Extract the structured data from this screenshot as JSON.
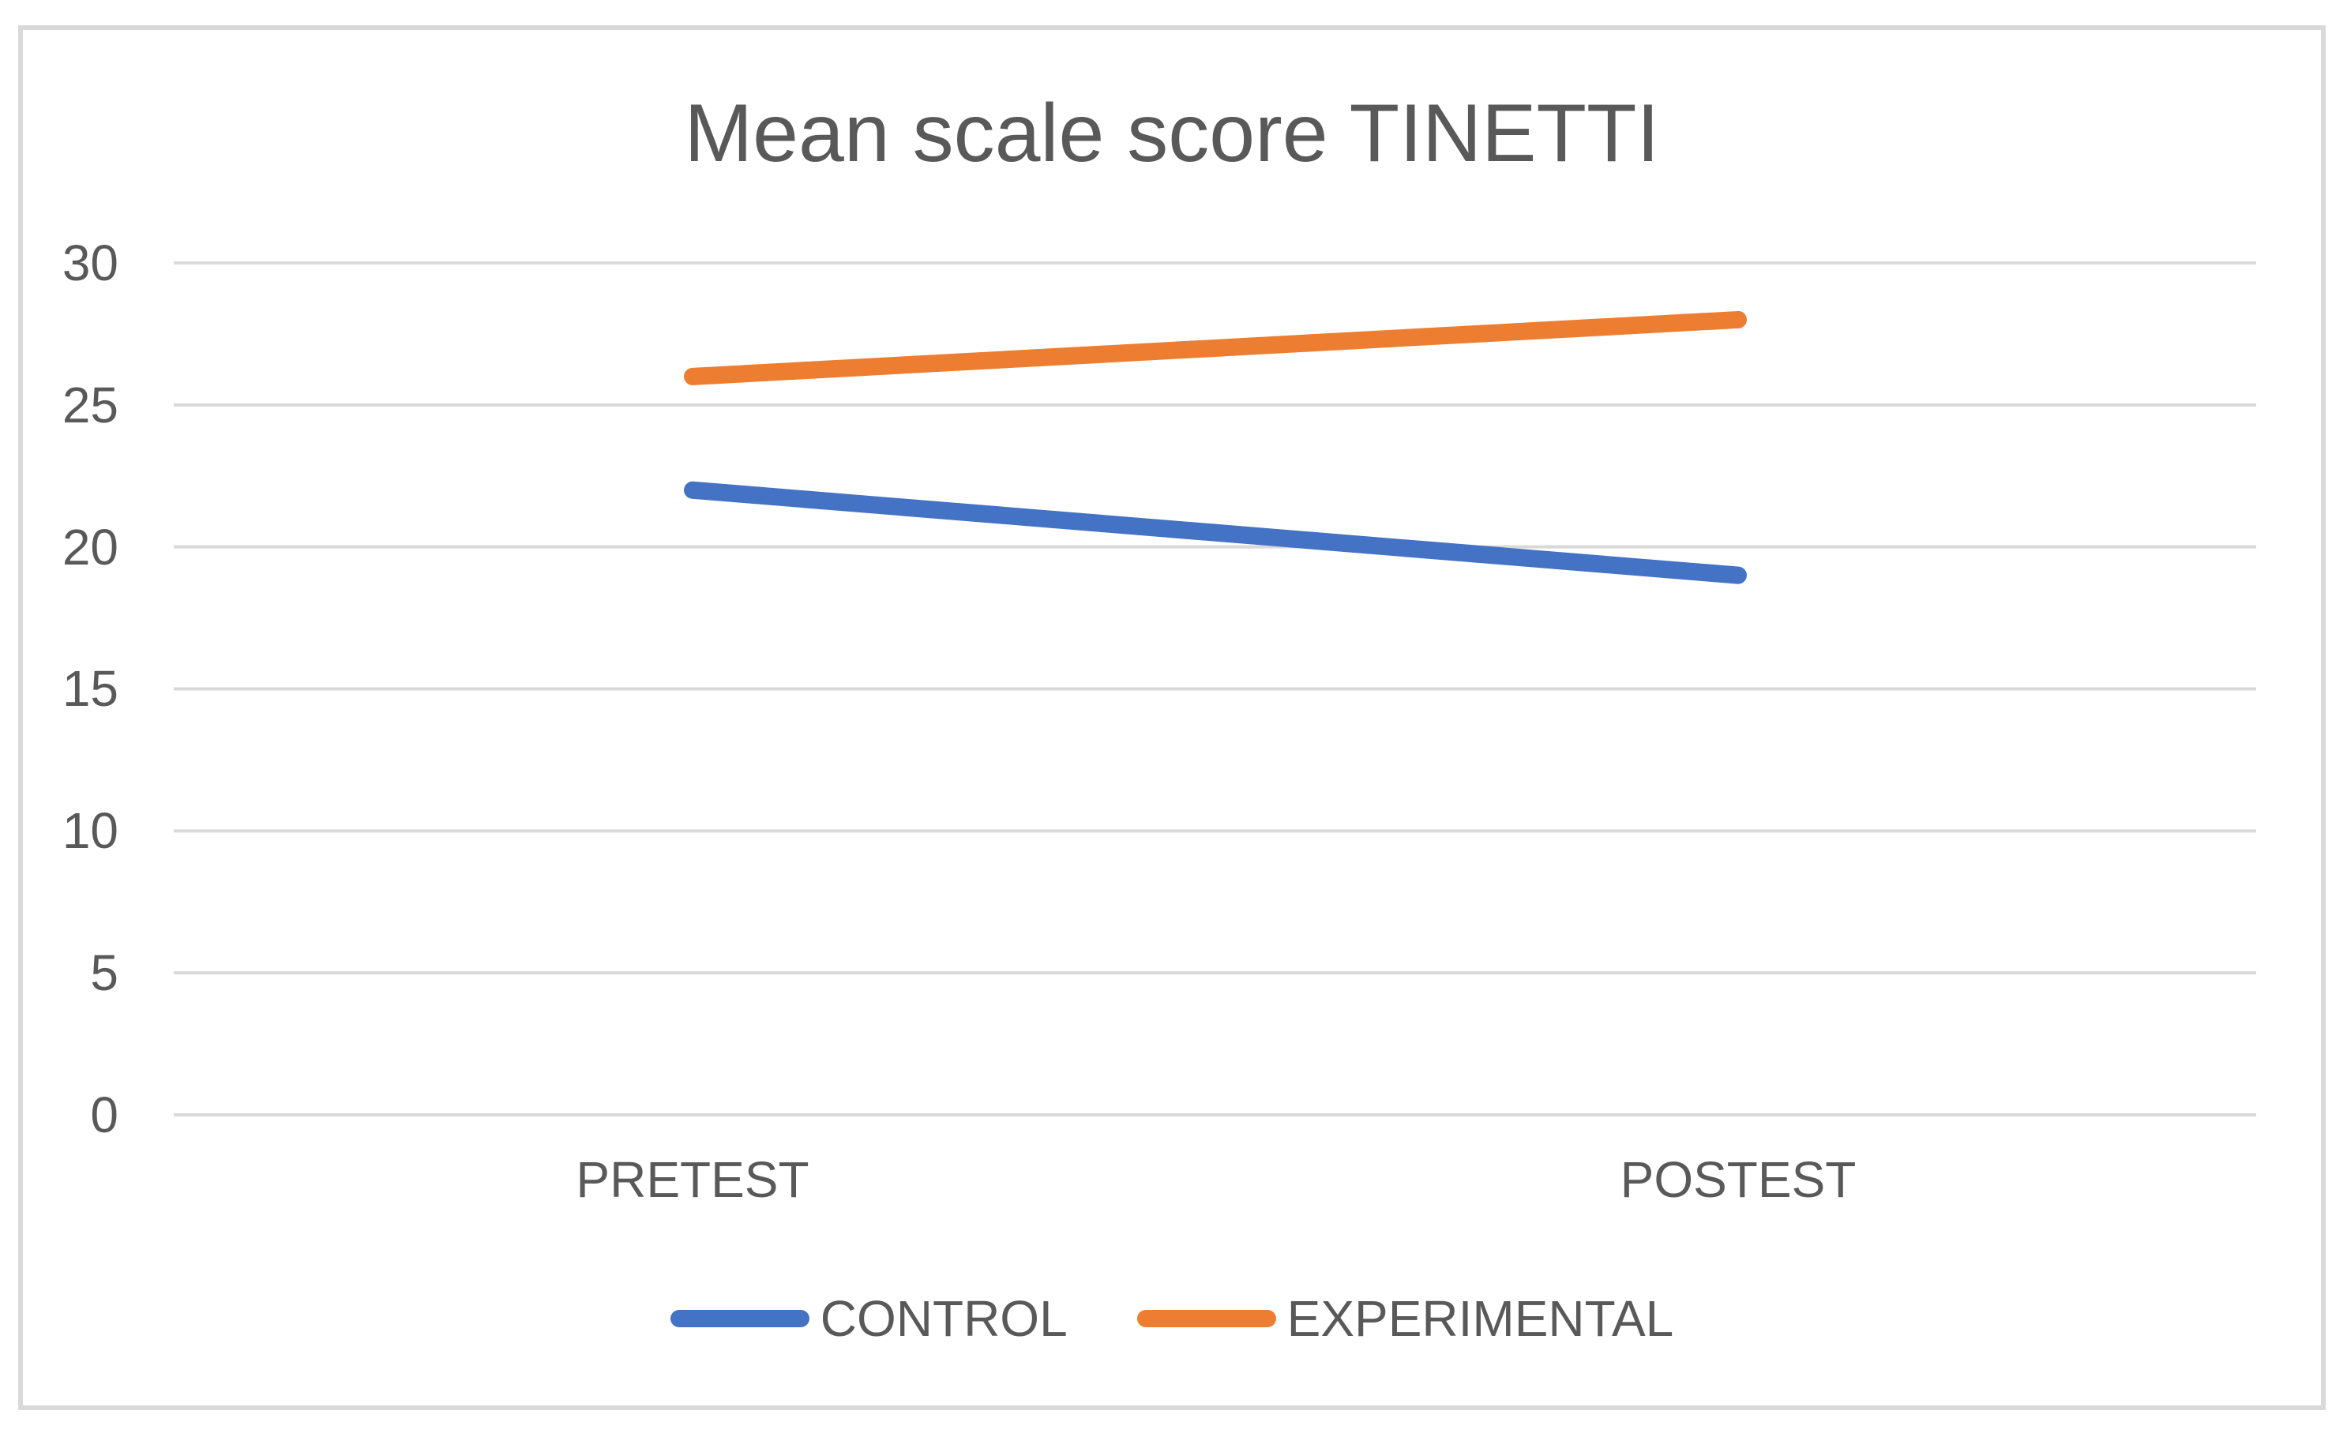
{
  "frame": {
    "border_color": "#D9D9D9",
    "background_color": "#FFFFFF"
  },
  "chart_data": {
    "type": "line",
    "title": "Mean scale score TINETTI",
    "categories": [
      "PRETEST",
      "POSTEST"
    ],
    "series": [
      {
        "name": "CONTROL",
        "color": "#4472C4",
        "values": [
          22,
          19
        ]
      },
      {
        "name": "EXPERIMENTAL",
        "color": "#ED7D31",
        "values": [
          26,
          28
        ]
      }
    ],
    "y_axis": {
      "min": 0,
      "max": 30,
      "step": 5,
      "tick_labels": [
        "30",
        "25",
        "20",
        "15",
        "10",
        "5",
        "0"
      ]
    },
    "ylim": [
      0,
      30
    ],
    "grid": true,
    "gridline_color": "#D9D9D9",
    "text_color": "#595959",
    "legend_position": "bottom"
  }
}
